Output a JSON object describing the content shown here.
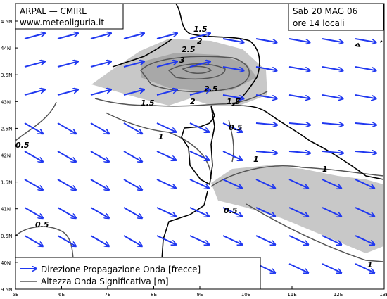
{
  "header": {
    "left": [
      "ARPAL — CMIRL",
      "www.meteoliguria.it"
    ],
    "right": [
      "Sab 20 MAG 06",
      "ore 14 locali"
    ]
  },
  "axes": {
    "y": [
      "4.5N",
      "44N",
      "3.5N",
      "43N",
      "2.5N",
      "42N",
      "1.5N",
      "41N",
      "0.5N",
      "40N",
      "9.5N"
    ],
    "x": [
      "5E",
      "6E",
      "7E",
      "8E",
      "9E",
      "10E",
      "11E",
      "12E",
      "13E"
    ]
  },
  "contours": [
    "1.5",
    "2",
    "2.5",
    "3",
    "2.5",
    "2",
    "1.5",
    "1.5",
    "1",
    "0.5",
    "1",
    "1",
    "0.5",
    "0.5",
    "0.5",
    "1"
  ],
  "legend": [
    "Direzione Propagazione Onda [frecce]",
    "Altezza Onda Significativa [m]"
  ]
}
